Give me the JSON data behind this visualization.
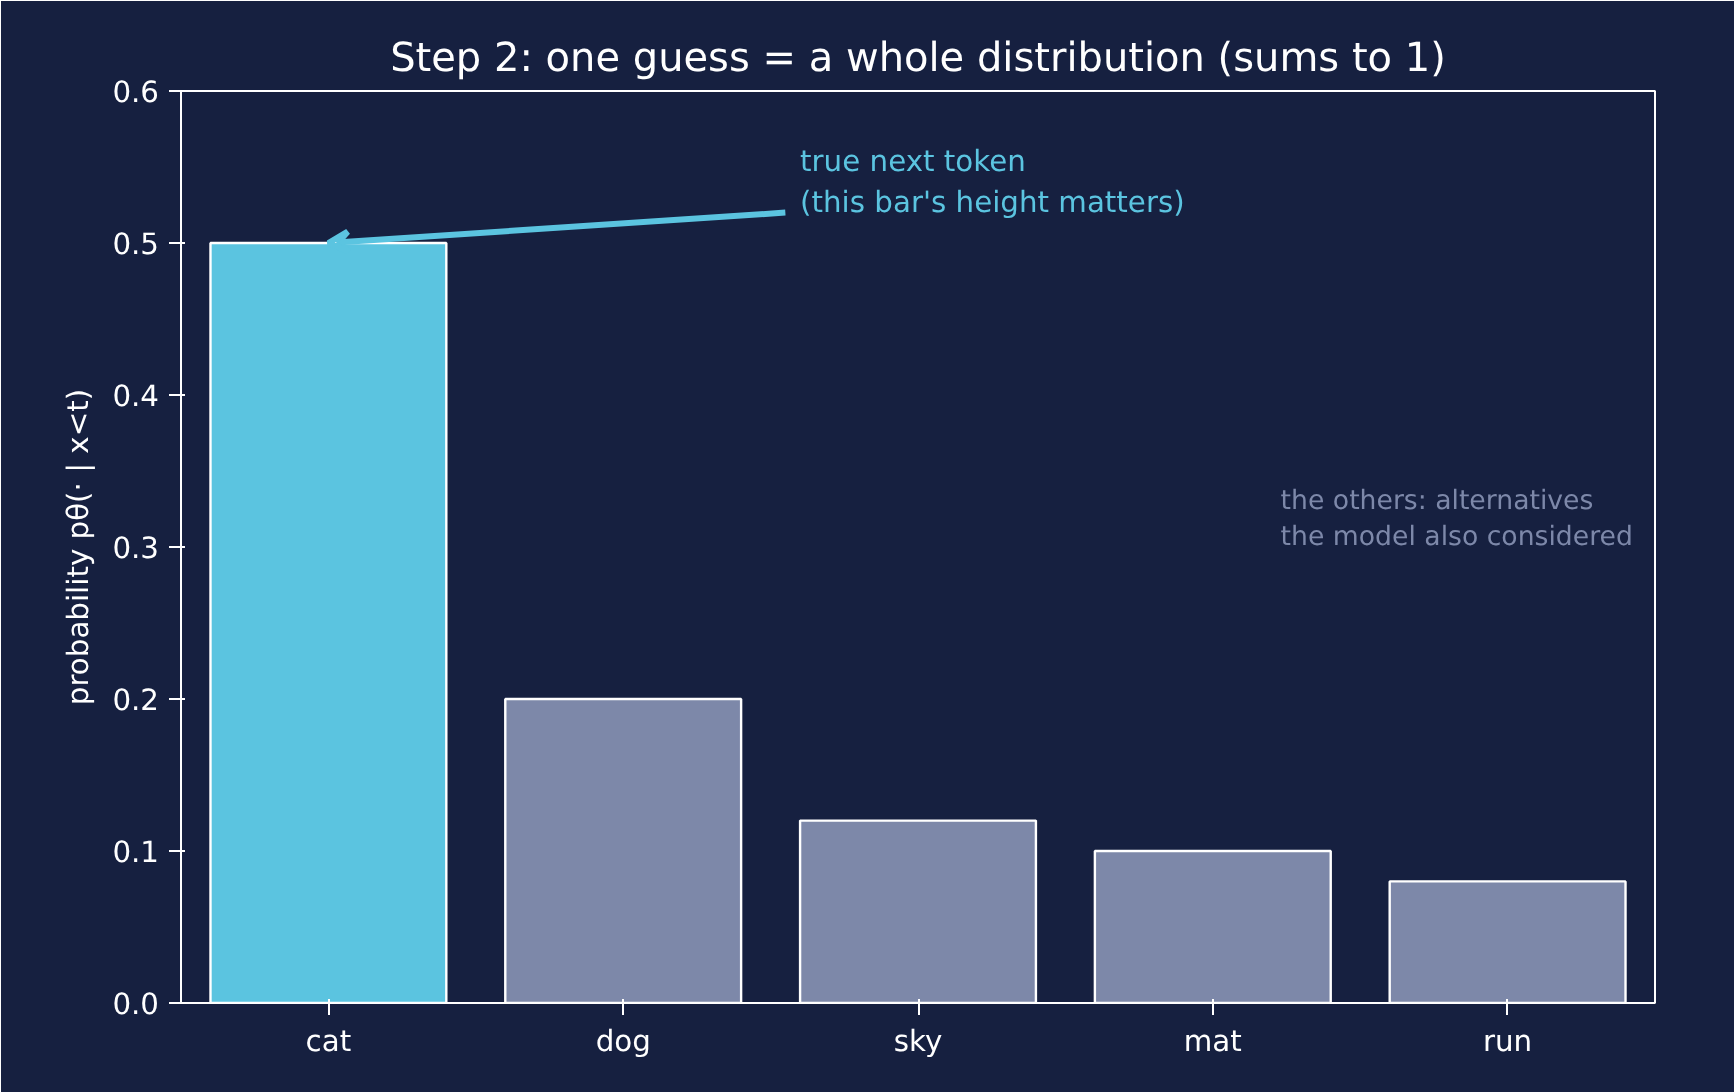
{
  "chart_data": {
    "type": "bar",
    "title": "Step 2: one guess = a whole distribution (sums to 1)",
    "ylabel": "probability pθ(· | x<t)",
    "categories": [
      "cat",
      "dog",
      "sky",
      "mat",
      "run"
    ],
    "values": [
      0.5,
      0.2,
      0.12,
      0.1,
      0.08
    ],
    "colors": [
      "#5bc4e0",
      "#7d88a9",
      "#7d88a9",
      "#7d88a9",
      "#7d88a9"
    ],
    "ylim": [
      0,
      0.6
    ],
    "yticks": [
      {
        "value": 0,
        "label": "0.0"
      },
      {
        "value": 0.1,
        "label": "0.1"
      },
      {
        "value": 0.2,
        "label": "0.2"
      },
      {
        "value": 0.3,
        "label": "0.3"
      },
      {
        "value": 0.4,
        "label": "0.4"
      },
      {
        "value": 0.5,
        "label": "0.5"
      },
      {
        "value": 0.6,
        "label": "0.6"
      }
    ],
    "annotations": [
      {
        "text": "true next token\n(this bar's height matters)",
        "x": "cat",
        "y": 0.5
      },
      "the others: alternatives\nthe model also considered"
    ],
    "grid": false
  }
}
